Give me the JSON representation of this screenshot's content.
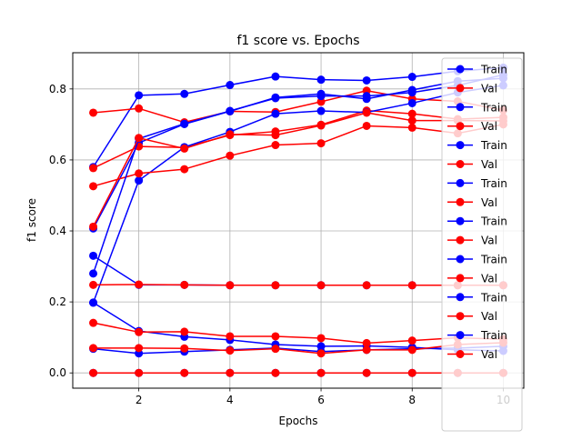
{
  "chart_data": {
    "type": "line",
    "title": "f1 score vs. Epochs",
    "xlabel": "Epochs",
    "ylabel": "f1 score",
    "x": [
      1,
      2,
      3,
      4,
      5,
      6,
      7,
      8,
      9,
      10
    ],
    "xlim": [
      0.55,
      10.45
    ],
    "ylim": [
      -0.043,
      0.902
    ],
    "xticks": [
      2,
      4,
      6,
      8,
      10
    ],
    "yticks": [
      0.0,
      0.2,
      0.4,
      0.6,
      0.8
    ],
    "ytick_labels": [
      "0.0",
      "0.2",
      "0.4",
      "0.6",
      "0.8"
    ],
    "grid": true,
    "legend_position": "right",
    "colors": {
      "train": "#0000ff",
      "val": "#ff0000"
    },
    "series": [
      {
        "name": "Train",
        "color": "#0000ff",
        "values": [
          0.58,
          0.782,
          0.786,
          0.811,
          0.835,
          0.826,
          0.824,
          0.834,
          0.85,
          0.86
        ]
      },
      {
        "name": "Val",
        "color": "#ff0000",
        "values": [
          0.733,
          0.745,
          0.706,
          0.737,
          0.735,
          0.764,
          0.795,
          0.772,
          0.765,
          0.74
        ]
      },
      {
        "name": "Train",
        "color": "#0000ff",
        "values": [
          0.407,
          0.648,
          0.701,
          0.737,
          0.776,
          0.786,
          0.772,
          0.797,
          0.822,
          0.83
        ]
      },
      {
        "name": "Val",
        "color": "#ff0000",
        "values": [
          0.577,
          0.638,
          0.635,
          0.67,
          0.68,
          0.699,
          0.739,
          0.73,
          0.715,
          0.72
        ]
      },
      {
        "name": "Train",
        "color": "#0000ff",
        "values": [
          0.198,
          0.542,
          0.636,
          0.679,
          0.73,
          0.738,
          0.734,
          0.76,
          0.79,
          0.81
        ]
      },
      {
        "name": "Val",
        "color": "#ff0000",
        "values": [
          0.526,
          0.562,
          0.574,
          0.612,
          0.642,
          0.647,
          0.696,
          0.691,
          0.675,
          0.7
        ]
      },
      {
        "name": "Train",
        "color": "#0000ff",
        "values": [
          0.28,
          0.66,
          0.702,
          0.738,
          0.774,
          0.78,
          0.78,
          0.79,
          0.81,
          0.84
        ]
      },
      {
        "name": "Val",
        "color": "#ff0000",
        "values": [
          0.412,
          0.662,
          0.632,
          0.672,
          0.67,
          0.697,
          0.733,
          0.711,
          0.711,
          0.71
        ]
      },
      {
        "name": "Train",
        "color": "#0000ff",
        "values": [
          0.33,
          0.248,
          0.248,
          0.247,
          0.247,
          0.247,
          0.247,
          0.247,
          0.247,
          0.247
        ]
      },
      {
        "name": "Val",
        "color": "#ff0000",
        "values": [
          0.248,
          0.249,
          0.248,
          0.247,
          0.247,
          0.247,
          0.247,
          0.247,
          0.247,
          0.247
        ]
      },
      {
        "name": "Train",
        "color": "#0000ff",
        "values": [
          0.198,
          0.118,
          0.102,
          0.093,
          0.08,
          0.075,
          0.076,
          0.072,
          0.065,
          0.062
        ]
      },
      {
        "name": "Val",
        "color": "#ff0000",
        "values": [
          0.141,
          0.115,
          0.116,
          0.103,
          0.103,
          0.098,
          0.084,
          0.091,
          0.099,
          0.095
        ]
      },
      {
        "name": "Train",
        "color": "#0000ff",
        "values": [
          0.068,
          0.055,
          0.06,
          0.065,
          0.07,
          0.06,
          0.065,
          0.068,
          0.07,
          0.075
        ]
      },
      {
        "name": "Val",
        "color": "#ff0000",
        "values": [
          0.07,
          0.07,
          0.069,
          0.063,
          0.068,
          0.055,
          0.065,
          0.065,
          0.08,
          0.085
        ]
      },
      {
        "name": "Train",
        "color": "#0000ff",
        "values": [
          0.0,
          0.0,
          0.0,
          0.0,
          0.0,
          0.0,
          0.0,
          0.0,
          0.0,
          0.0
        ]
      },
      {
        "name": "Val",
        "color": "#ff0000",
        "values": [
          0.0,
          0.0,
          0.0,
          0.0,
          0.0,
          0.0,
          0.0,
          0.0,
          0.0,
          0.0
        ]
      }
    ]
  }
}
